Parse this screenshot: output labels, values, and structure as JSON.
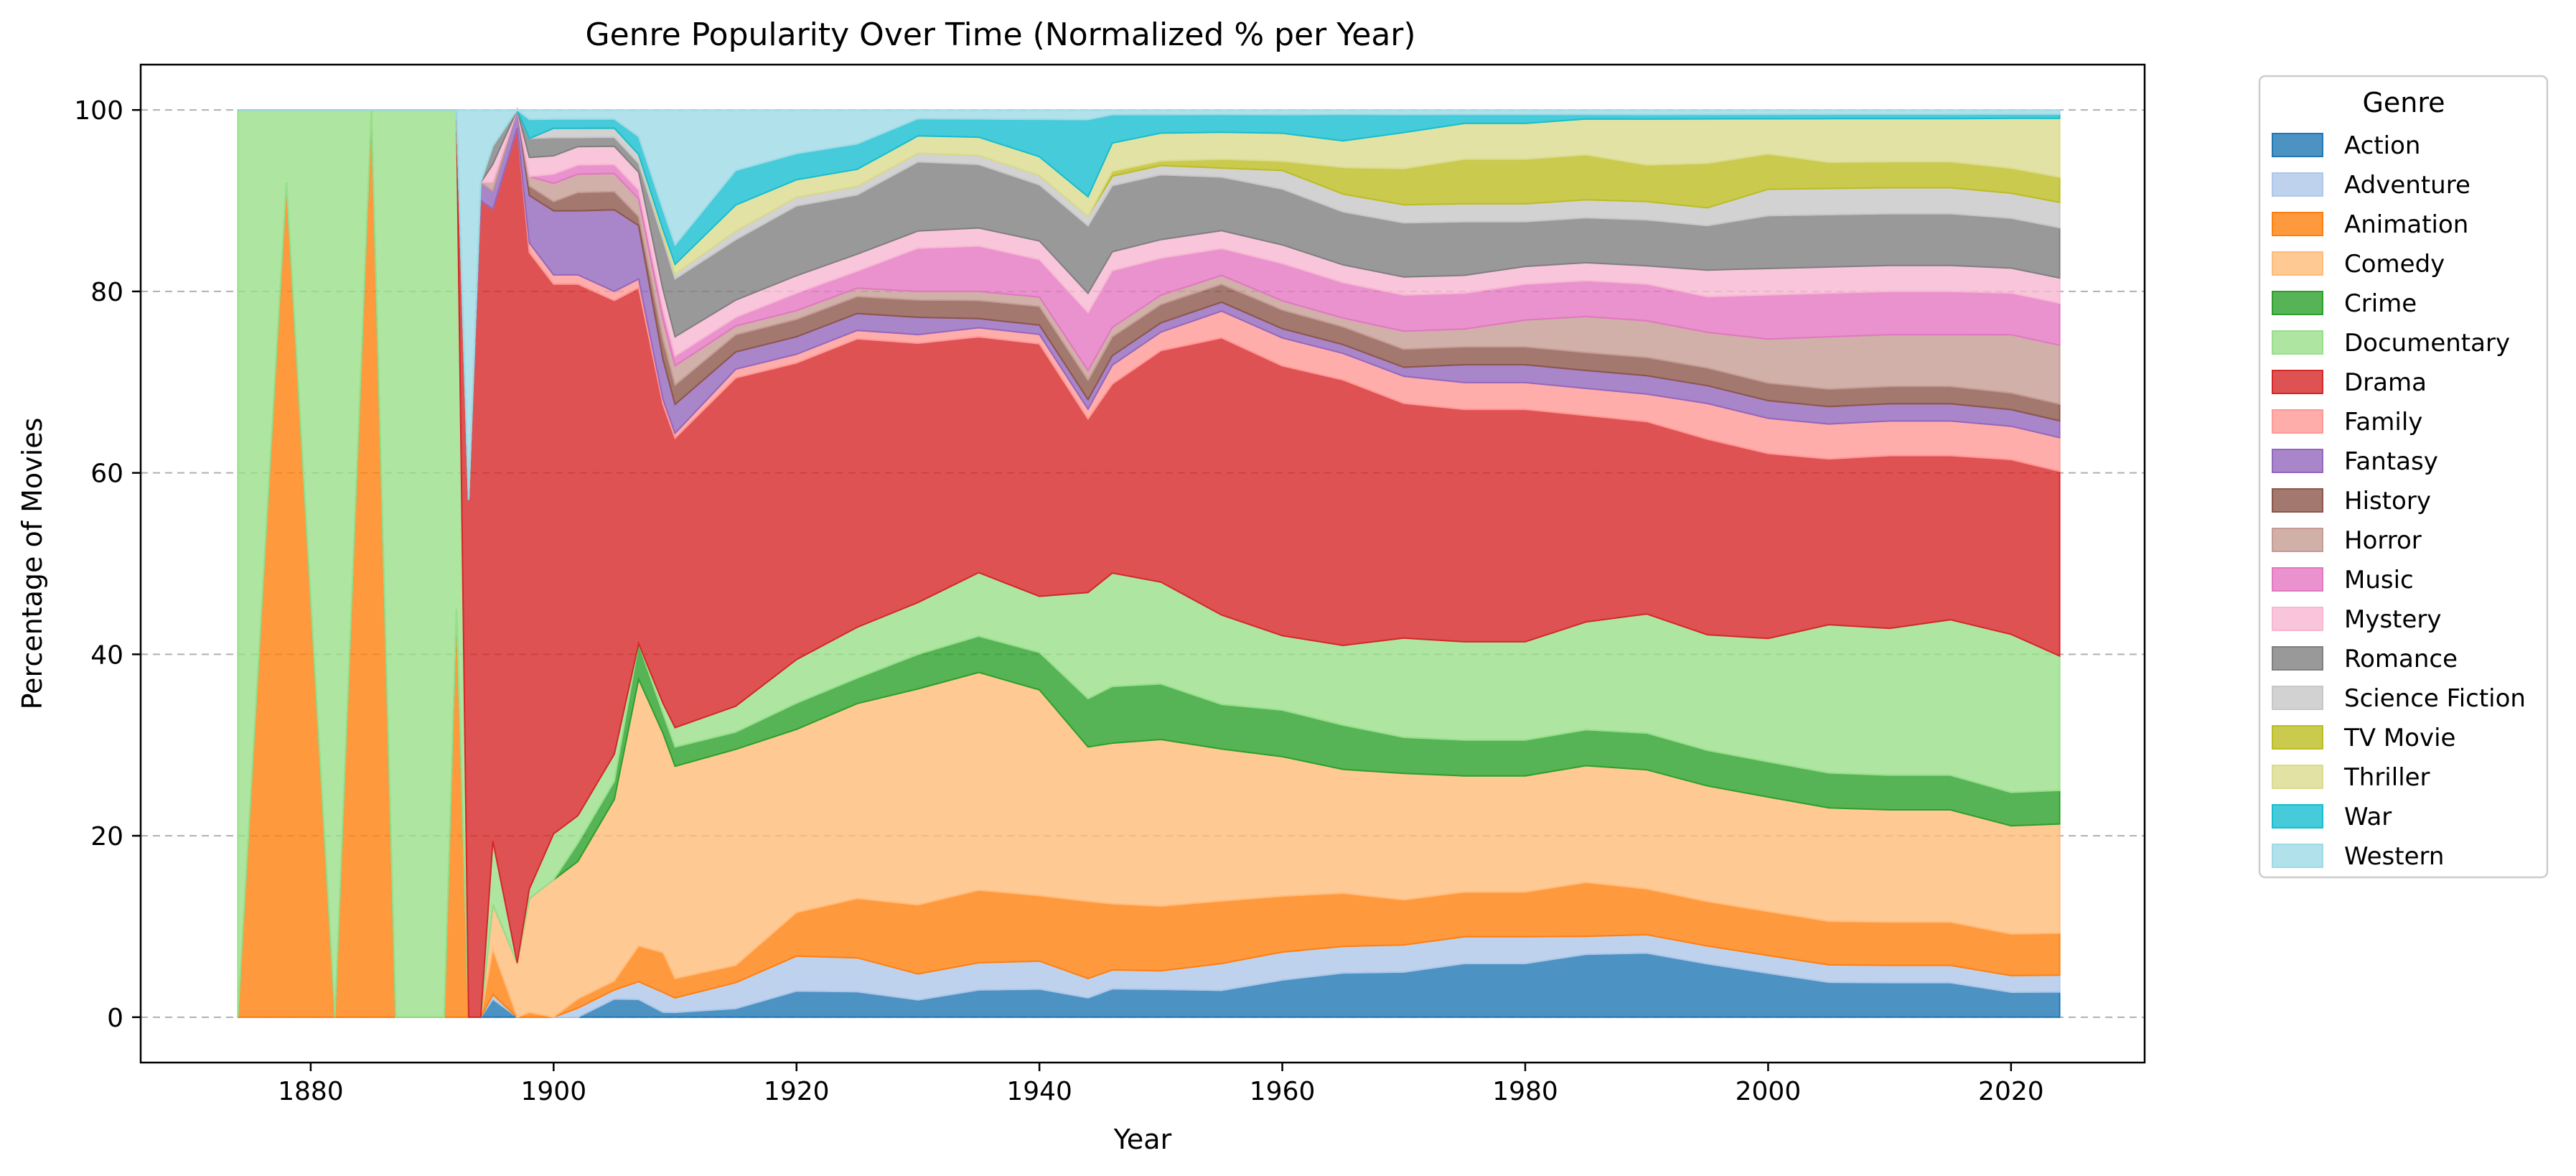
{
  "chart_data": {
    "type": "area",
    "stacked": true,
    "normalized": true,
    "title": "Genre Popularity Over Time (Normalized % per Year)",
    "xlabel": "Year",
    "ylabel": "Percentage of Movies",
    "xlim": [
      1866,
      2031
    ],
    "ylim": [
      -5,
      105
    ],
    "xticks": [
      1880,
      1900,
      1920,
      1940,
      1960,
      1980,
      2000,
      2020
    ],
    "yticks": [
      0,
      20,
      40,
      60,
      80,
      100
    ],
    "grid": "y-dashed",
    "legend": {
      "title": "Genre",
      "placement": "outside-right"
    },
    "x": [
      1874,
      1878,
      1882,
      1885,
      1887,
      1891,
      1892,
      1893,
      1894,
      1895,
      1897,
      1898,
      1900,
      1902,
      1905,
      1907,
      1909,
      1910,
      1915,
      1920,
      1925,
      1930,
      1935,
      1940,
      1944,
      1946,
      1950,
      1955,
      1960,
      1965,
      1970,
      1975,
      1980,
      1985,
      1990,
      1995,
      2000,
      2005,
      2010,
      2015,
      2020,
      2024
    ],
    "series": [
      {
        "name": "Action",
        "color": "#1f77b4",
        "values": [
          0,
          0,
          0,
          0,
          0,
          0,
          0,
          0,
          0,
          2,
          0,
          0,
          0,
          0,
          2,
          2,
          0.5,
          0.5,
          1,
          3,
          3,
          2,
          3,
          3,
          2,
          3,
          3,
          3,
          4,
          5,
          5,
          6,
          6,
          7,
          7,
          6,
          5,
          4,
          4,
          4,
          3,
          3
        ]
      },
      {
        "name": "Adventure",
        "color": "#aec7e8",
        "values": [
          0,
          0,
          0,
          0,
          0,
          0,
          0,
          0,
          0,
          0.5,
          0,
          0,
          0,
          1,
          1,
          2,
          2,
          1.5,
          3,
          4,
          4,
          3,
          3,
          3,
          2,
          2,
          2,
          3,
          3,
          3,
          3,
          3,
          3,
          2,
          2,
          2,
          2,
          2,
          2,
          2,
          2,
          2
        ]
      },
      {
        "name": "Animation",
        "color": "#ff7f0e",
        "values": [
          0,
          92,
          0,
          100,
          0,
          0,
          45,
          0,
          0,
          5,
          0,
          0.5,
          0,
          1,
          1,
          4,
          4,
          2,
          2,
          5,
          7,
          8,
          8,
          7,
          8,
          7,
          7,
          7,
          6,
          6,
          5,
          5,
          5,
          6,
          5,
          5,
          5,
          5,
          5,
          5,
          5,
          5
        ]
      },
      {
        "name": "Comedy",
        "color": "#ffbb78",
        "values": [
          0,
          0,
          0,
          0,
          0,
          0,
          0,
          0,
          0,
          5,
          6,
          12,
          15,
          15,
          20,
          30,
          22,
          22,
          25,
          21,
          23,
          25,
          24,
          22,
          16,
          17,
          18,
          17,
          15,
          14,
          14,
          13,
          13,
          13,
          13,
          13,
          13,
          13,
          13,
          13,
          13,
          13
        ]
      },
      {
        "name": "Crime",
        "color": "#2ca02c",
        "values": [
          0,
          0,
          0,
          0,
          0,
          0,
          0,
          0,
          0,
          0,
          0,
          0,
          0,
          2,
          2,
          4,
          2,
          2,
          2,
          3,
          3,
          4,
          4,
          4,
          5,
          6,
          6,
          5,
          5,
          5,
          4,
          4,
          4,
          4,
          4,
          4,
          4,
          4,
          4,
          4,
          4,
          4
        ]
      },
      {
        "name": "Documentary",
        "color": "#98df8a",
        "values": [
          100,
          8,
          100,
          0,
          100,
          100,
          55,
          0,
          0,
          7,
          0,
          1,
          5,
          3,
          3,
          0,
          1,
          2,
          3,
          5,
          6,
          6,
          7,
          6,
          11,
          12,
          11,
          10,
          8,
          9,
          11,
          11,
          11,
          12,
          13,
          13,
          14,
          17,
          17,
          18,
          19,
          16
        ]
      },
      {
        "name": "Drama",
        "color": "#d62728",
        "values": [
          0,
          0,
          0,
          0,
          0,
          0,
          0,
          57,
          90,
          70,
          92,
          67,
          60,
          58,
          50,
          40,
          30,
          30,
          38,
          34,
          34,
          30,
          26,
          27,
          18,
          20,
          25,
          31,
          29,
          30,
          26,
          26,
          26,
          23,
          21,
          22,
          21,
          19,
          20,
          19,
          21,
          22
        ]
      },
      {
        "name": "Family",
        "color": "#ff9896",
        "values": [
          0,
          0,
          0,
          0,
          0,
          0,
          0,
          0,
          0,
          0,
          0,
          1,
          1,
          1,
          1,
          1,
          0.5,
          0.5,
          1,
          1,
          1,
          1,
          1,
          1,
          1,
          2,
          2,
          3,
          3,
          3,
          3,
          3,
          3,
          3,
          3,
          4,
          4,
          4,
          4,
          4,
          4,
          4
        ]
      },
      {
        "name": "Fantasy",
        "color": "#9467bd",
        "values": [
          0,
          0,
          0,
          0,
          0,
          0,
          0,
          0,
          2,
          2,
          2,
          5,
          7,
          7,
          9,
          6,
          4,
          3,
          2,
          2,
          2,
          2,
          1,
          1,
          1,
          1,
          1,
          1,
          1,
          1,
          1,
          2,
          2,
          2,
          2,
          2,
          2,
          2,
          2,
          2,
          2,
          2
        ]
      },
      {
        "name": "History",
        "color": "#8c564b",
        "values": [
          0,
          0,
          0,
          0,
          0,
          0,
          0,
          0,
          0,
          0,
          0,
          1,
          1,
          2,
          2,
          1,
          2,
          2,
          2,
          2,
          2,
          2,
          2,
          2,
          2,
          2,
          2,
          2,
          2,
          2,
          2,
          2,
          2,
          2,
          2,
          2,
          2,
          2,
          2,
          2,
          2,
          2
        ]
      },
      {
        "name": "Horror",
        "color": "#c49c94",
        "values": [
          0,
          0,
          0,
          0,
          0,
          0,
          0,
          0,
          0,
          1,
          0,
          1,
          2,
          2,
          2,
          2,
          2,
          2,
          1,
          1,
          1,
          1,
          1,
          1,
          1,
          1,
          1,
          1,
          1,
          1,
          2,
          2,
          3,
          4,
          4,
          4,
          5,
          6,
          6,
          6,
          7,
          7
        ]
      },
      {
        "name": "Music",
        "color": "#e377c2",
        "values": [
          0,
          0,
          0,
          0,
          0,
          0,
          0,
          0,
          0,
          0,
          0,
          0,
          1,
          1,
          1,
          1,
          1,
          1,
          1,
          2,
          2,
          5,
          5,
          4,
          6,
          6,
          4,
          3,
          4,
          4,
          4,
          4,
          4,
          4,
          4,
          4,
          5,
          5,
          5,
          5,
          5,
          5
        ]
      },
      {
        "name": "Mystery",
        "color": "#f7b6d2",
        "values": [
          0,
          0,
          0,
          0,
          0,
          0,
          0,
          0,
          0,
          2,
          0,
          2,
          2,
          2,
          2,
          2,
          2,
          2,
          2,
          2,
          2,
          2,
          2,
          2,
          2,
          2,
          2,
          2,
          2,
          2,
          2,
          2,
          2,
          2,
          2,
          3,
          3,
          3,
          3,
          3,
          3,
          3
        ]
      },
      {
        "name": "Romance",
        "color": "#7f7f7f",
        "values": [
          0,
          0,
          0,
          0,
          0,
          0,
          0,
          0,
          0,
          2,
          0,
          2,
          2,
          1,
          1,
          1,
          5,
          6,
          7,
          8,
          7,
          8,
          7,
          6,
          7,
          7,
          7,
          6,
          6,
          6,
          6,
          6,
          5,
          5,
          5,
          5,
          6,
          6,
          6,
          6,
          6,
          6
        ]
      },
      {
        "name": "Science Fiction",
        "color": "#c7c7c7",
        "values": [
          0,
          0,
          0,
          0,
          0,
          0,
          0,
          0,
          0,
          0,
          0,
          0,
          1,
          1,
          1,
          1,
          0.5,
          0.5,
          1,
          1,
          1,
          1,
          1,
          1,
          1,
          1,
          1,
          1,
          2,
          2,
          2,
          2,
          2,
          2,
          2,
          2,
          3,
          3,
          3,
          3,
          3,
          3
        ]
      },
      {
        "name": "TV Movie",
        "color": "#bcbd22",
        "values": [
          0,
          0,
          0,
          0,
          0,
          0,
          0,
          0,
          0,
          0,
          0,
          0,
          0,
          0,
          0,
          0,
          0,
          0,
          0,
          0,
          0,
          0,
          0,
          0,
          0,
          0.5,
          0.5,
          1,
          1,
          3,
          4,
          5,
          5,
          5,
          4,
          5,
          4,
          3,
          3,
          3,
          3,
          3
        ]
      },
      {
        "name": "Thriller",
        "color": "#dbdb8d",
        "values": [
          0,
          0,
          0,
          0,
          0,
          0,
          0,
          0,
          0,
          0,
          0,
          0,
          0,
          0,
          0,
          0,
          0.5,
          1,
          3,
          2,
          2,
          2,
          2,
          2,
          2,
          3,
          3,
          3,
          3,
          3,
          4,
          4,
          4,
          4,
          5,
          5,
          4,
          5,
          5,
          5,
          6,
          7
        ]
      },
      {
        "name": "War",
        "color": "#17becf",
        "values": [
          0,
          0,
          0,
          0,
          0,
          0,
          0,
          0,
          0,
          0,
          0,
          2,
          1,
          1,
          1,
          2,
          2,
          2,
          4,
          3,
          3,
          2,
          2,
          4,
          8,
          3,
          2,
          2,
          2,
          3,
          2,
          1,
          1,
          0.5,
          0.5,
          0.5,
          0.5,
          0.5,
          0.5,
          0.5,
          0.5,
          0.5
        ]
      },
      {
        "name": "Western",
        "color": "#9edae5",
        "values": [
          0,
          0,
          0,
          0,
          0,
          0,
          0,
          43,
          8,
          4,
          0,
          1,
          1,
          1,
          1,
          3,
          10,
          14,
          7,
          5,
          4,
          1,
          1,
          1,
          1,
          0.5,
          0.5,
          0.5,
          0.5,
          0.5,
          0.5,
          0.5,
          0.5,
          0.5,
          0.5,
          0.5,
          0.5,
          0.5,
          0.5,
          0.5,
          0.5,
          0.5
        ]
      }
    ]
  }
}
